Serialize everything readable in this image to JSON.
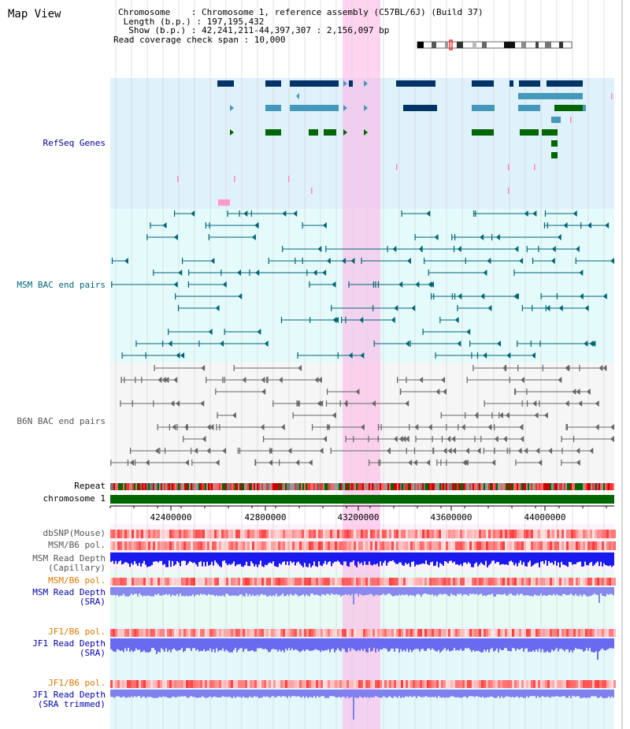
{
  "title": "Map View",
  "info": {
    "chromosome": "Chromosome    : Chromosome 1, reference assembly (C57BL/6J) (Build 37)",
    "length": " Length (b.p.) : 197,195,432",
    "show": "  Show (b.p.) : 42,241,211-44,397,307 : 2,156,097 bp",
    "span": "Read coverage check span : 10,000"
  },
  "tracks": {
    "refseq": "RefSeq Genes",
    "msm_bac": "MSM BAC end pairs",
    "b6n_bac": "B6N BAC end pairs",
    "repeat": "Repeat",
    "chromosome": "chromosome 1",
    "dbsnp": "dbSNP(Mouse)",
    "msm_b6_pol": "MSM/B6 pol.",
    "msm_depth_cap_1": "MSM Read Depth",
    "msm_depth_cap_2": "(Capillary)",
    "msm_b6_pol2": "MSM/B6 pol.",
    "msm_depth_sra_1": "MSM Read Depth",
    "msm_depth_sra_2": "(SRA)",
    "jf1_pol": "JF1/B6 pol.",
    "jf1_depth_1": "JF1 Read Depth",
    "jf1_depth_2": "(SRA)",
    "jf1_pol2": "JF1/B6 pol.",
    "jf1_trim_1": "JF1 Read Depth",
    "jf1_trim_2": "(SRA trimmed)"
  },
  "axis_ticks": [
    "42400000",
    "42800000",
    "43200000",
    "43600000",
    "44000000"
  ],
  "colors": {
    "refseq_label": "#000099",
    "msm_bac_label": "#006677",
    "b6n_bac_label": "#555555",
    "pol_label": "#dd7700",
    "depth_label": "#0000aa",
    "highlight": "#ffb0e6",
    "chromosome_bar": "#006600"
  }
}
